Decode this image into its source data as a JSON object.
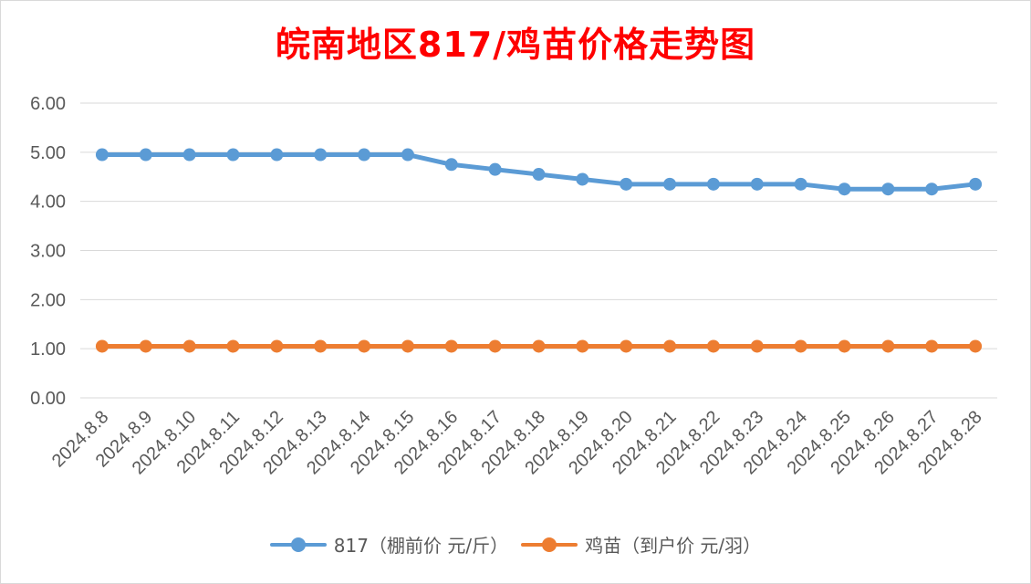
{
  "chart_data": {
    "type": "line",
    "title": "皖南地区817/鸡苗价格走势图",
    "xlabel": "",
    "ylabel": "",
    "ylim": [
      0,
      6
    ],
    "yticks": [
      "0.00",
      "1.00",
      "2.00",
      "3.00",
      "4.00",
      "5.00",
      "6.00"
    ],
    "grid": true,
    "legend_position": "bottom",
    "categories": [
      "2024.8.8",
      "2024.8.9",
      "2024.8.10",
      "2024.8.11",
      "2024.8.12",
      "2024.8.13",
      "2024.8.14",
      "2024.8.15",
      "2024.8.16",
      "2024.8.17",
      "2024.8.18",
      "2024.8.19",
      "2024.8.20",
      "2024.8.21",
      "2024.8.22",
      "2024.8.23",
      "2024.8.24",
      "2024.8.25",
      "2024.8.26",
      "2024.8.27",
      "2024.8.28"
    ],
    "series": [
      {
        "name": "817（棚前价 元/斤）",
        "color": "#5b9bd5",
        "values": [
          4.95,
          4.95,
          4.95,
          4.95,
          4.95,
          4.95,
          4.95,
          4.95,
          4.75,
          4.65,
          4.55,
          4.45,
          4.35,
          4.35,
          4.35,
          4.35,
          4.35,
          4.25,
          4.25,
          4.25,
          4.35
        ]
      },
      {
        "name": "鸡苗（到户价 元/羽）",
        "color": "#ed7d31",
        "values": [
          1.05,
          1.05,
          1.05,
          1.05,
          1.05,
          1.05,
          1.05,
          1.05,
          1.05,
          1.05,
          1.05,
          1.05,
          1.05,
          1.05,
          1.05,
          1.05,
          1.05,
          1.05,
          1.05,
          1.05,
          1.05
        ]
      }
    ]
  }
}
